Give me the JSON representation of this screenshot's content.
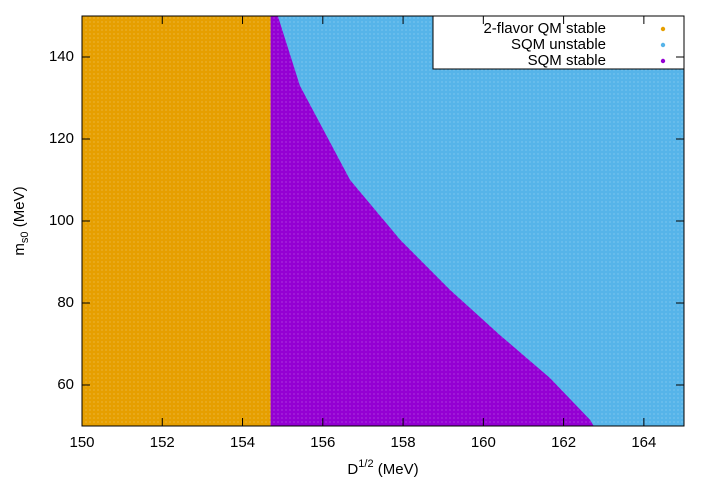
{
  "chart_data": {
    "type": "area",
    "xlabel": {
      "base": "D",
      "sup": "1/2",
      "rest": " (MeV)"
    },
    "ylabel": {
      "base": "m",
      "sub": "s0",
      "rest": " (MeV)"
    },
    "xlim": [
      150,
      165
    ],
    "ylim": [
      50,
      150
    ],
    "xticks": [
      150,
      152,
      154,
      156,
      158,
      160,
      162,
      164
    ],
    "yticks": [
      60,
      80,
      100,
      120,
      140
    ],
    "legend": "top-right",
    "series": [
      {
        "name": "2-flavor QM stable",
        "color": "#e69f00",
        "x": [
          150,
          154.7
        ],
        "values": [
          150,
          150
        ]
      },
      {
        "name": "SQM unstable",
        "color": "#56b4e9",
        "x": [
          154.7,
          165
        ],
        "values": [
          150,
          150
        ]
      },
      {
        "name": "SQM stable",
        "color": "#9400d3",
        "x": [
          154.7,
          154.88,
          155.43,
          156.68,
          157.93,
          159.17,
          160.41,
          161.66,
          162.66,
          162.75
        ],
        "values": [
          150,
          150,
          133,
          110,
          95.4,
          83.2,
          72.2,
          61.7,
          51.5,
          50
        ]
      }
    ]
  }
}
